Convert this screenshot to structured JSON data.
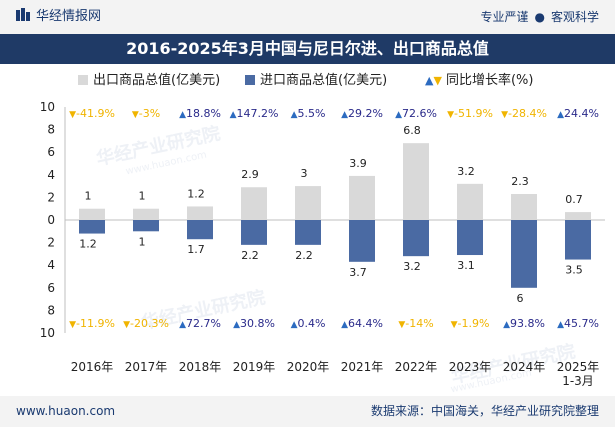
{
  "header": {
    "brand": "华经情报网",
    "tagline_left": "专业严谨",
    "tagline_sep": "●",
    "tagline_right": "客观科学"
  },
  "watermark": {
    "text": "华经产业研究院",
    "url": "www.huaon.com"
  },
  "footer": {
    "website": "www.huaon.com",
    "source": "数据来源：中国海关，华经产业研究院整理"
  },
  "colors": {
    "export_bar": "#d9d9d9",
    "import_bar": "#4a6aa3",
    "up_arrow": "#2c6bc0",
    "down_arrow": "#f0b400",
    "title_bg": "#1f3a66"
  },
  "chart_data": {
    "type": "bar",
    "title": "2016-2025年3月中国与尼日尔进、出口商品总值",
    "categories": [
      "2016年",
      "2017年",
      "2018年",
      "2019年",
      "2020年",
      "2021年",
      "2022年",
      "2023年",
      "2024年",
      "2025年\n1-3月"
    ],
    "series": [
      {
        "name": "出口商品总值(亿美元)",
        "values": [
          1,
          1,
          1.2,
          2.9,
          3,
          3.9,
          6.8,
          3.2,
          2.3,
          0.7
        ],
        "labels": [
          "1",
          "1",
          "1.2",
          "2.9",
          "3",
          "3.9",
          "6.8",
          "3.2",
          "2.3",
          "0.7"
        ],
        "growth": [
          "-41.9%",
          "-3%",
          "18.8%",
          "147.2%",
          "5.5%",
          "29.2%",
          "72.6%",
          "-51.9%",
          "-28.4%",
          "24.4%"
        ]
      },
      {
        "name": "进口商品总值(亿美元)",
        "values": [
          1.2,
          1,
          1.7,
          2.2,
          2.2,
          3.7,
          3.2,
          3.1,
          6,
          3.5
        ],
        "labels": [
          "1.2",
          "1",
          "1.7",
          "2.2",
          "2.2",
          "3.7",
          "3.2",
          "3.1",
          "6",
          "3.5"
        ],
        "growth": [
          "-11.9%",
          "-20.3%",
          "72.7%",
          "30.8%",
          "0.4%",
          "64.4%",
          "-14%",
          "-1.9%",
          "93.8%",
          "45.7%"
        ]
      }
    ],
    "growth_legend": "同比增长率(%)",
    "yaxis_ticks": [
      "10",
      "8",
      "6",
      "4",
      "2",
      "0",
      "2",
      "4",
      "6",
      "8",
      "10"
    ],
    "ylim": [
      -10,
      10
    ]
  }
}
